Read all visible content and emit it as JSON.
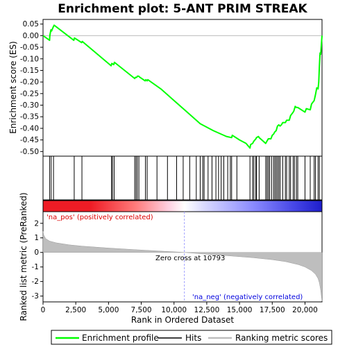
{
  "chart_data": {
    "type": "line",
    "title": "Enrichment plot: 5-ANT PRIM STREAK",
    "xlabel": "Rank in Ordered Dataset",
    "ylabel_top": "Enrichment score (ES)",
    "ylabel_bottom": "Ranked list metric (PreRanked)",
    "xlim": [
      0,
      21300
    ],
    "x_ticks": [
      0,
      2500,
      5000,
      7500,
      10000,
      12500,
      15000,
      17500,
      20000
    ],
    "x_tick_labels": [
      "0",
      "2,500",
      "5,000",
      "7,500",
      "10,000",
      "12,500",
      "15,000",
      "17,500",
      "20,000"
    ],
    "es_ylim": [
      -0.52,
      0.07
    ],
    "es_ticks": [
      0.05,
      0.0,
      -0.05,
      -0.1,
      -0.15,
      -0.2,
      -0.25,
      -0.3,
      -0.35,
      -0.4,
      -0.45,
      -0.5
    ],
    "es_tick_labels": [
      "0.05",
      "0.00",
      "-0.05",
      "-0.10",
      "-0.15",
      "-0.20",
      "-0.25",
      "-0.30",
      "-0.35",
      "-0.40",
      "-0.45",
      "-0.50"
    ],
    "metric_ylim": [
      -3.4,
      2.8
    ],
    "metric_ticks": [
      2,
      1,
      0,
      -1,
      -2,
      -3
    ],
    "metric_tick_labels": [
      "2",
      "1",
      "0",
      "-1",
      "-2",
      "-3"
    ],
    "series": [
      {
        "name": "Enrichment profile",
        "x": [
          0,
          500,
          520,
          600,
          650,
          800,
          850,
          2350,
          2400,
          2950,
          3000,
          5200,
          5250,
          5400,
          5450,
          7000,
          7050,
          7150,
          7200,
          7300,
          7400,
          7800,
          7850,
          7950,
          8000,
          9000,
          10000,
          11000,
          12000,
          13000,
          14000,
          14400,
          14450,
          15000,
          15500,
          15800,
          15850,
          16000,
          16100,
          16250,
          16300,
          16450,
          16500,
          17000,
          17100,
          17200,
          17300,
          17400,
          17500,
          17600,
          17700,
          17800,
          17900,
          18000,
          18100,
          18200,
          18300,
          18500,
          18600,
          18800,
          18900,
          19100,
          19150,
          19250,
          19350,
          19450,
          20000,
          20100,
          20400,
          20500,
          20700,
          20800,
          20900,
          21000,
          21050,
          21100,
          21150,
          21200,
          21300
        ],
        "y": [
          0.0,
          -0.02,
          0.0,
          0.025,
          0.02,
          0.04,
          0.045,
          -0.02,
          -0.01,
          -0.03,
          -0.025,
          -0.13,
          -0.12,
          -0.125,
          -0.115,
          -0.185,
          -0.18,
          -0.18,
          -0.175,
          -0.175,
          -0.18,
          -0.195,
          -0.19,
          -0.195,
          -0.19,
          -0.23,
          -0.28,
          -0.33,
          -0.38,
          -0.41,
          -0.435,
          -0.44,
          -0.43,
          -0.45,
          -0.465,
          -0.485,
          -0.47,
          -0.465,
          -0.455,
          -0.445,
          -0.44,
          -0.435,
          -0.44,
          -0.465,
          -0.455,
          -0.445,
          -0.445,
          -0.445,
          -0.43,
          -0.425,
          -0.415,
          -0.41,
          -0.39,
          -0.385,
          -0.39,
          -0.385,
          -0.375,
          -0.375,
          -0.365,
          -0.365,
          -0.345,
          -0.33,
          -0.325,
          -0.305,
          -0.31,
          -0.31,
          -0.33,
          -0.315,
          -0.32,
          -0.295,
          -0.28,
          -0.255,
          -0.225,
          -0.23,
          -0.2,
          -0.13,
          -0.075,
          -0.08,
          0.0
        ]
      }
    ],
    "hits": [
      500,
      620,
      800,
      2380,
      2970,
      5230,
      5300,
      5430,
      7000,
      7100,
      7200,
      7320,
      7820,
      7950,
      8700,
      9500,
      10200,
      10700,
      11200,
      11700,
      12000,
      12200,
      12300,
      12600,
      12900,
      13200,
      13400,
      13600,
      13800,
      14100,
      14300,
      14400,
      14800,
      15800,
      16000,
      16100,
      16250,
      16300,
      16500,
      17000,
      17100,
      17200,
      17300,
      17450,
      17600,
      17700,
      17800,
      17900,
      18000,
      18100,
      18300,
      18500,
      18600,
      18800,
      18900,
      19100,
      19200,
      19350,
      19450,
      20000,
      20400,
      20700,
      20800,
      21000,
      21100
    ],
    "metric_profile": {
      "x": [
        0,
        50,
        200,
        500,
        1000,
        2000,
        3000,
        5000,
        7000,
        9000,
        10000,
        10793,
        12000,
        14000,
        16000,
        17500,
        18500,
        19500,
        20000,
        20500,
        20800,
        21000,
        21100,
        21200,
        21250,
        21300
      ],
      "y": [
        1.45,
        1.2,
        0.95,
        0.78,
        0.66,
        0.52,
        0.43,
        0.3,
        0.19,
        0.09,
        0.04,
        0.0,
        -0.09,
        -0.22,
        -0.36,
        -0.5,
        -0.63,
        -0.84,
        -1.0,
        -1.25,
        -1.5,
        -1.8,
        -2.1,
        -2.6,
        -3.0,
        -3.35
      ]
    },
    "zero_cross": 10793,
    "annotations": {
      "pos": "'na_pos' (positively correlated)",
      "neg": "'na_neg' (negatively correlated)",
      "zero": "Zero cross at 10793"
    },
    "colors": {
      "profile": "#00ff00",
      "hits": "#000000",
      "metric": "#bebebe",
      "pos_text": "#dd0000",
      "neg_text": "#0000dd",
      "zero_line": "#a0a0ff",
      "bar_red": "#ee1c25",
      "bar_white": "#ffffff",
      "bar_blue": "#1e1ecc"
    },
    "legend": {
      "placement": "bottom",
      "items": [
        {
          "label": "Enrichment profile",
          "kind": "profile"
        },
        {
          "label": "Hits",
          "kind": "hits"
        },
        {
          "label": "Ranking metric scores",
          "kind": "metric"
        }
      ]
    }
  }
}
